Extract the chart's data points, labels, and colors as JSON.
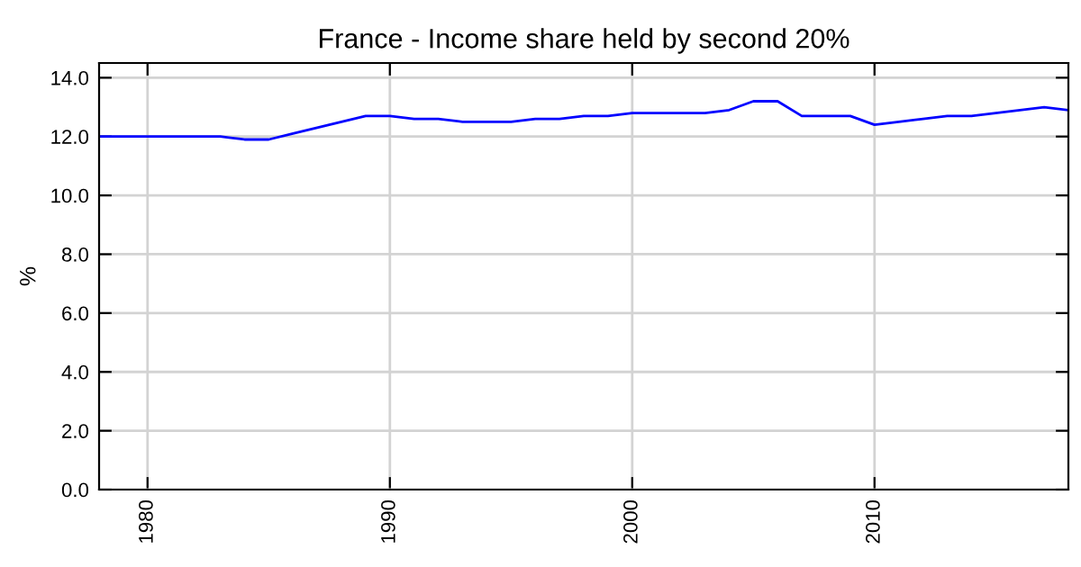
{
  "chart_data": {
    "type": "line",
    "title": "France - Income share held by second 20%",
    "ylabel": "%",
    "x": [
      1978,
      1979,
      1980,
      1981,
      1982,
      1983,
      1984,
      1985,
      1986,
      1987,
      1988,
      1989,
      1990,
      1991,
      1992,
      1993,
      1994,
      1995,
      1996,
      1997,
      1998,
      1999,
      2000,
      2001,
      2002,
      2003,
      2004,
      2005,
      2006,
      2007,
      2008,
      2009,
      2010,
      2011,
      2012,
      2013,
      2014,
      2015,
      2016,
      2017,
      2018
    ],
    "series": [
      {
        "color": "#0000ff",
        "values": [
          12.0,
          12.0,
          12.0,
          12.0,
          12.0,
          12.0,
          11.9,
          11.9,
          12.1,
          12.3,
          12.5,
          12.7,
          12.7,
          12.6,
          12.6,
          12.5,
          12.5,
          12.5,
          12.6,
          12.6,
          12.7,
          12.7,
          12.8,
          12.8,
          12.8,
          12.8,
          12.9,
          13.2,
          13.2,
          12.7,
          12.7,
          12.7,
          12.4,
          12.5,
          12.6,
          12.7,
          12.7,
          12.8,
          12.9,
          13.0,
          12.9
        ]
      }
    ],
    "xlim": [
      1978,
      2018
    ],
    "xticks": [
      1980,
      1990,
      2000,
      2010
    ],
    "ylim": [
      0,
      14.5
    ],
    "yticks": [
      {
        "value": 0,
        "label": "0.0"
      },
      {
        "value": 2,
        "label": "2.0"
      },
      {
        "value": 4,
        "label": "4.0"
      },
      {
        "value": 6,
        "label": "6.0"
      },
      {
        "value": 8,
        "label": "8.0"
      },
      {
        "value": 10,
        "label": "10.0"
      },
      {
        "value": 12,
        "label": "12.0"
      },
      {
        "value": 14,
        "label": "14.0"
      }
    ],
    "grid": true,
    "marker": "none",
    "line_style": "solid"
  }
}
